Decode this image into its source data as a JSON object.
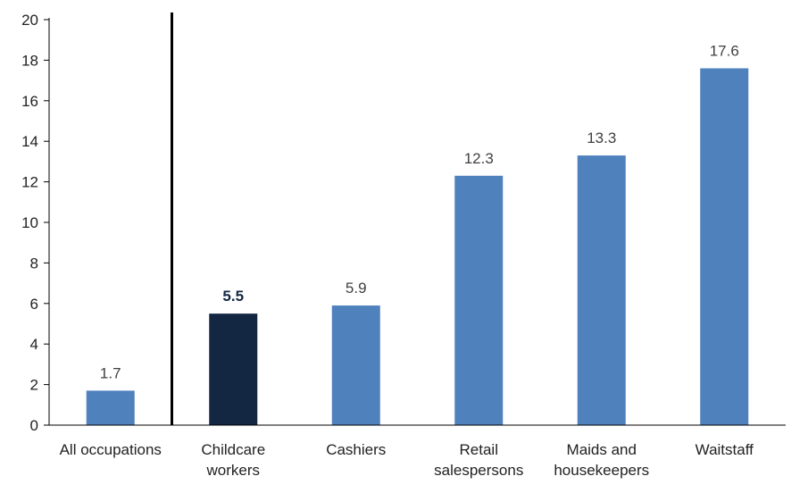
{
  "chart_data": {
    "type": "bar",
    "categories": [
      "All occupations",
      "Childcare workers",
      "Cashiers",
      "Retail salespersons",
      "Maids and housekeepers",
      "Waitstaff"
    ],
    "category_lines": [
      [
        "All occupations"
      ],
      [
        "Childcare",
        "workers"
      ],
      [
        "Cashiers"
      ],
      [
        "Retail",
        "salespersons"
      ],
      [
        "Maids and",
        "housekeepers"
      ],
      [
        "Waitstaff"
      ]
    ],
    "values": [
      1.7,
      5.5,
      5.9,
      12.3,
      13.3,
      17.6
    ],
    "data_labels": [
      "1.7",
      "5.5",
      "5.9",
      "12.3",
      "13.3",
      "17.6"
    ],
    "highlight_index": 1,
    "ylim": [
      0,
      20
    ],
    "yticks": [
      0,
      2,
      4,
      6,
      8,
      10,
      12,
      14,
      16,
      18,
      20
    ],
    "title": "",
    "xlabel": "",
    "ylabel": "",
    "grid": false,
    "separator_after_index": 0,
    "colors": {
      "bar": "#4f81bd",
      "bar_highlight": "#132743",
      "axis": "#000000",
      "text": "#222222",
      "label_text": "#404040"
    }
  }
}
